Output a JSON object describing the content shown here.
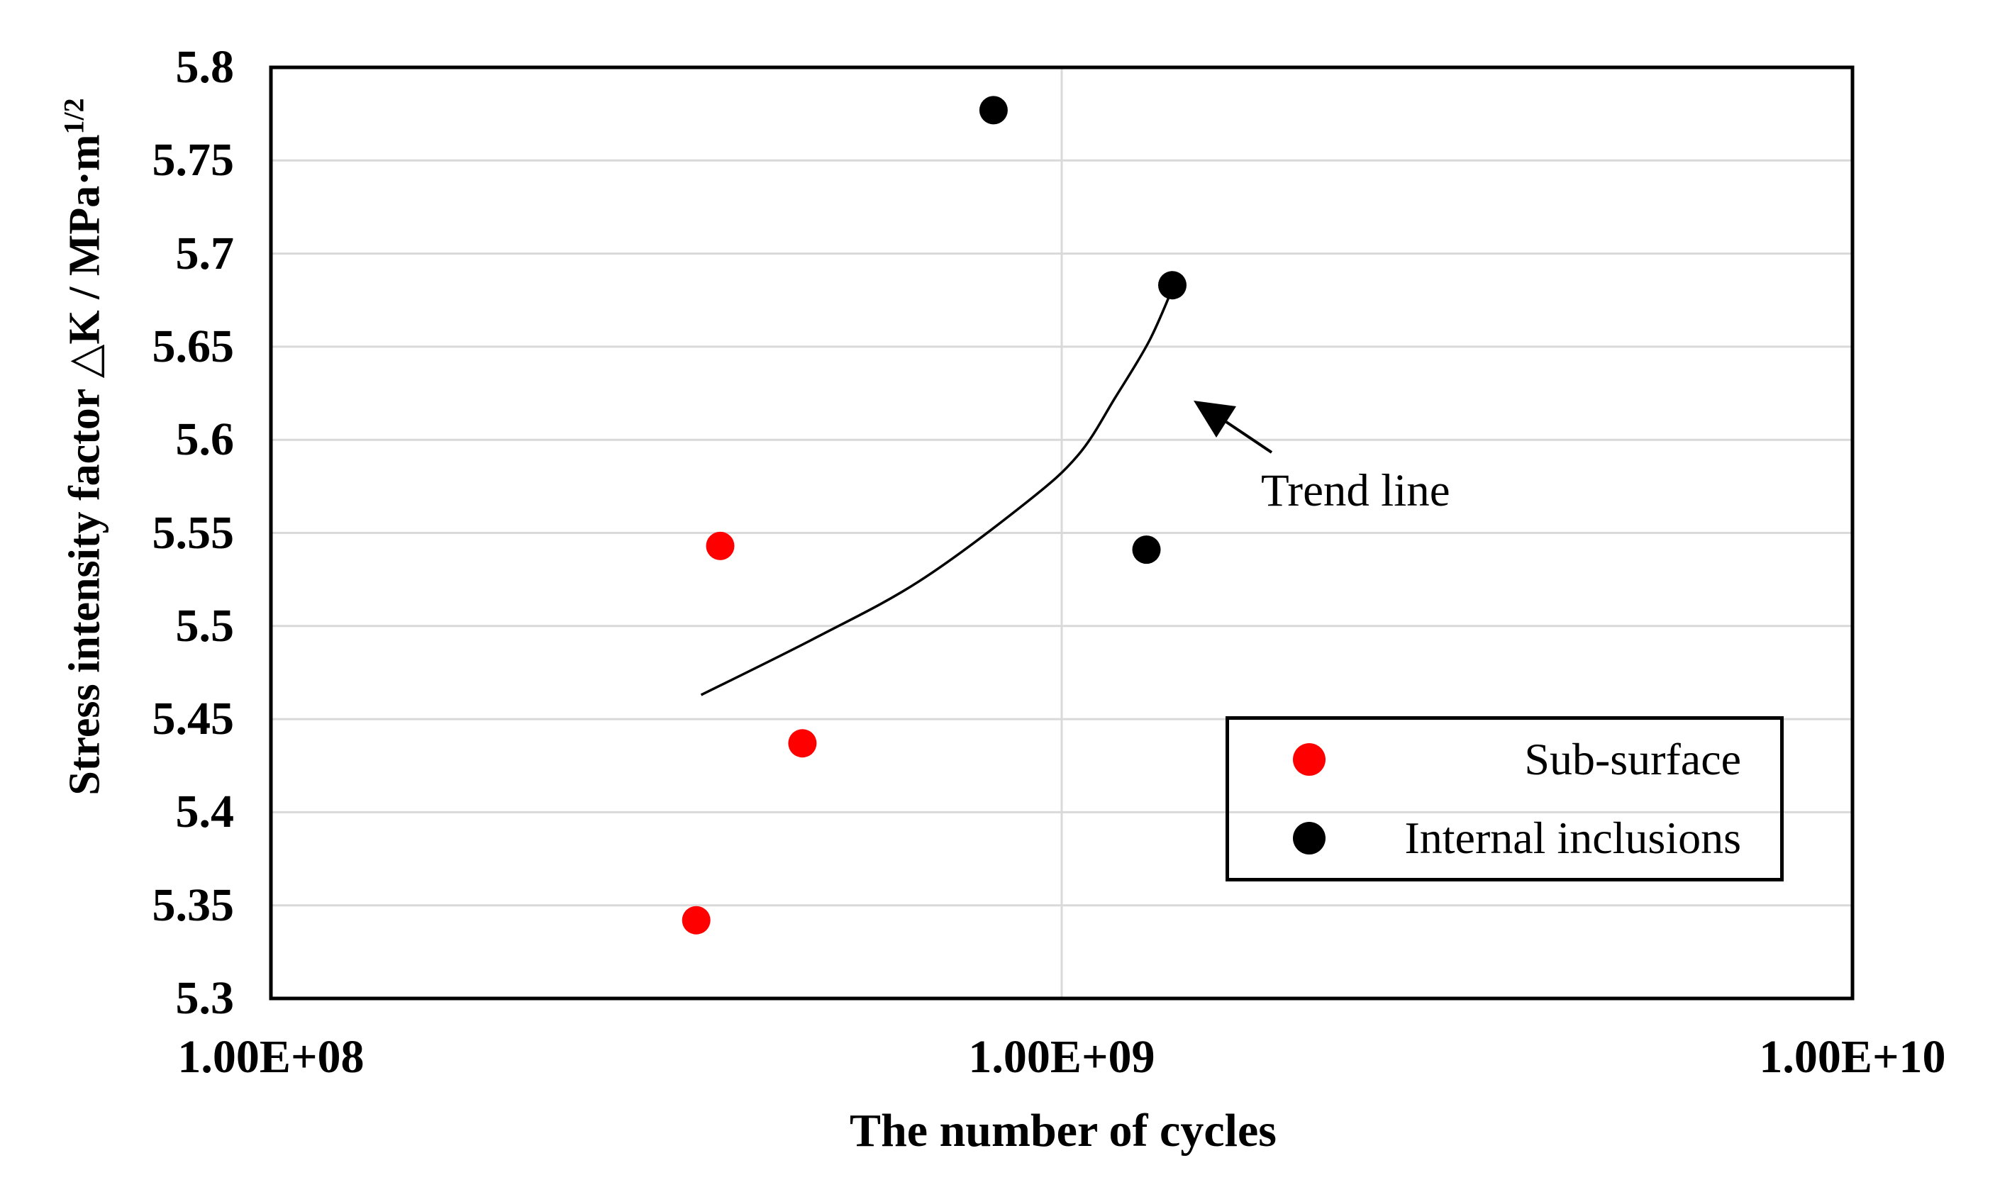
{
  "chart_data": {
    "type": "scatter",
    "title": "",
    "xlabel": "The number of cycles",
    "ylabel": "Stress intensity factor △K / MPa·m",
    "ylabel_superscript": "1/2",
    "x_scale": "log",
    "xlim": [
      100000000.0,
      10000000000.0
    ],
    "ylim": [
      5.3,
      5.8
    ],
    "grid": true,
    "x_ticks": [
      {
        "value": 100000000.0,
        "label": "1.00E+08"
      },
      {
        "value": 1000000000.0,
        "label": "1.00E+09"
      },
      {
        "value": 10000000000.0,
        "label": "1.00E+10"
      }
    ],
    "y_ticks": [
      {
        "value": 5.8,
        "label": "5.8"
      },
      {
        "value": 5.75,
        "label": "5.75"
      },
      {
        "value": 5.7,
        "label": "5.7"
      },
      {
        "value": 5.65,
        "label": "5.65"
      },
      {
        "value": 5.6,
        "label": "5.6"
      },
      {
        "value": 5.55,
        "label": "5.55"
      },
      {
        "value": 5.5,
        "label": "5.5"
      },
      {
        "value": 5.45,
        "label": "5.45"
      },
      {
        "value": 5.4,
        "label": "5.4"
      },
      {
        "value": 5.35,
        "label": "5.35"
      },
      {
        "value": 5.3,
        "label": "5.3"
      }
    ],
    "y_grid_values": [
      5.75,
      5.7,
      5.65,
      5.6,
      5.55,
      5.5,
      5.45,
      5.4,
      5.35
    ],
    "x_grid_values": [
      1000000000.0
    ],
    "series": [
      {
        "name": "Sub-surface",
        "color": "#ff0000",
        "points": [
          [
            370000000.0,
            5.543
          ],
          [
            470000000.0,
            5.437
          ],
          [
            345000000.0,
            5.342
          ]
        ]
      },
      {
        "name": "Internal inclusions",
        "color": "#000000",
        "points": [
          [
            820000000.0,
            5.777
          ],
          [
            1380000000.0,
            5.683
          ],
          [
            1280000000.0,
            5.541
          ]
        ]
      }
    ],
    "trend_line": {
      "label": "Trend line",
      "points": [
        [
          350000000.0,
          5.463
        ],
        [
          490000000.0,
          5.494
        ],
        [
          660000000.0,
          5.524
        ],
        [
          900000000.0,
          5.566
        ],
        [
          1050000000.0,
          5.592
        ],
        [
          1170000000.0,
          5.623
        ],
        [
          1290000000.0,
          5.653
        ],
        [
          1380000000.0,
          5.681
        ]
      ]
    },
    "legend_position": "inside lower right"
  },
  "colors": {
    "grid": "#d9d9d9",
    "frame": "#000000",
    "annotation": "#000000",
    "background": "#ffffff"
  }
}
